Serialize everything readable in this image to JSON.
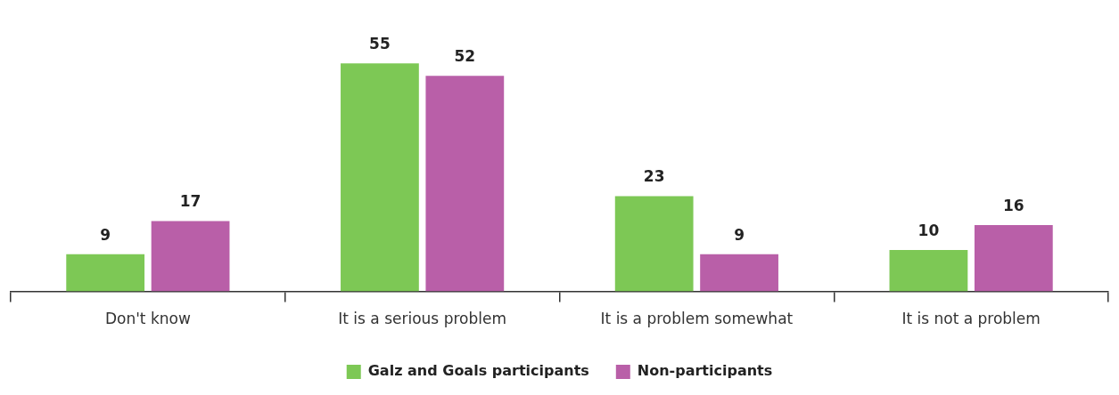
{
  "chart_data": {
    "type": "bar",
    "categories": [
      "Don't know",
      "It is a serious problem",
      "It is a problem somewhat",
      "It is not a problem"
    ],
    "series": [
      {
        "name": "Galz and Goals participants",
        "color": "#7dc855",
        "values": [
          9,
          55,
          23,
          10
        ]
      },
      {
        "name": "Non-participants",
        "color": "#b95fa8",
        "values": [
          17,
          52,
          9,
          16
        ]
      }
    ],
    "data_labels": true,
    "legend": "bottom",
    "grid": false
  }
}
